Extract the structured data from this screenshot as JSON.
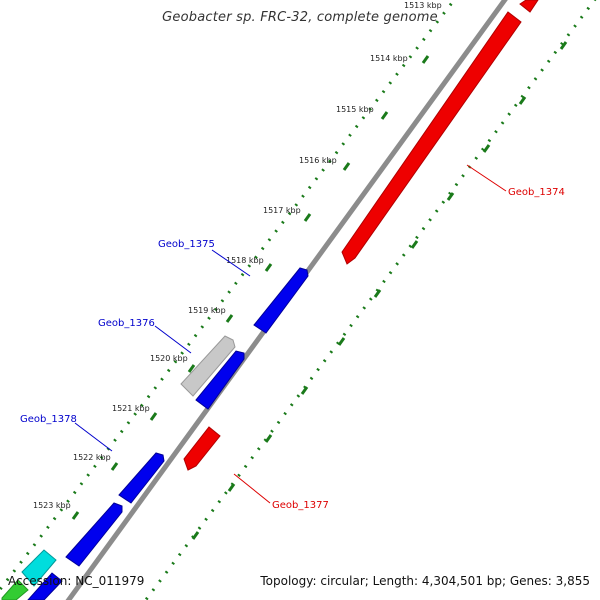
{
  "title": "Geobacter sp. FRC-32, complete genome",
  "footer": {
    "accession": "Accession: NC_011979",
    "summary": "Topology: circular; Length: 4,304,501 bp; Genes: 3,855"
  },
  "colors": {
    "backbone": "#8c8c8c",
    "tick": "#1a7a1a",
    "forward_gene": "#0000ee",
    "reverse_gene": "#ee0000",
    "other_gene": "#c0c0c0",
    "cyan_gene": "#00dddd",
    "green_gene": "#33cc33",
    "forward_label": "#0000cc",
    "reverse_label": "#dd0000"
  },
  "kbp_ticks": [
    "1513 kbp",
    "1514 kbp",
    "1515 kbp",
    "1516 kbp",
    "1517 kbp",
    "1518 kbp",
    "1519 kbp",
    "1520 kbp",
    "1521 kbp",
    "1522 kbp",
    "1523 kbp"
  ],
  "genes": [
    {
      "label": "Geob_1374",
      "strand": "reverse"
    },
    {
      "label": "Geob_1375",
      "strand": "forward"
    },
    {
      "label": "Geob_1376",
      "strand": "forward"
    },
    {
      "label": "Geob_1377",
      "strand": "reverse"
    },
    {
      "label": "Geob_1378",
      "strand": "forward"
    }
  ]
}
